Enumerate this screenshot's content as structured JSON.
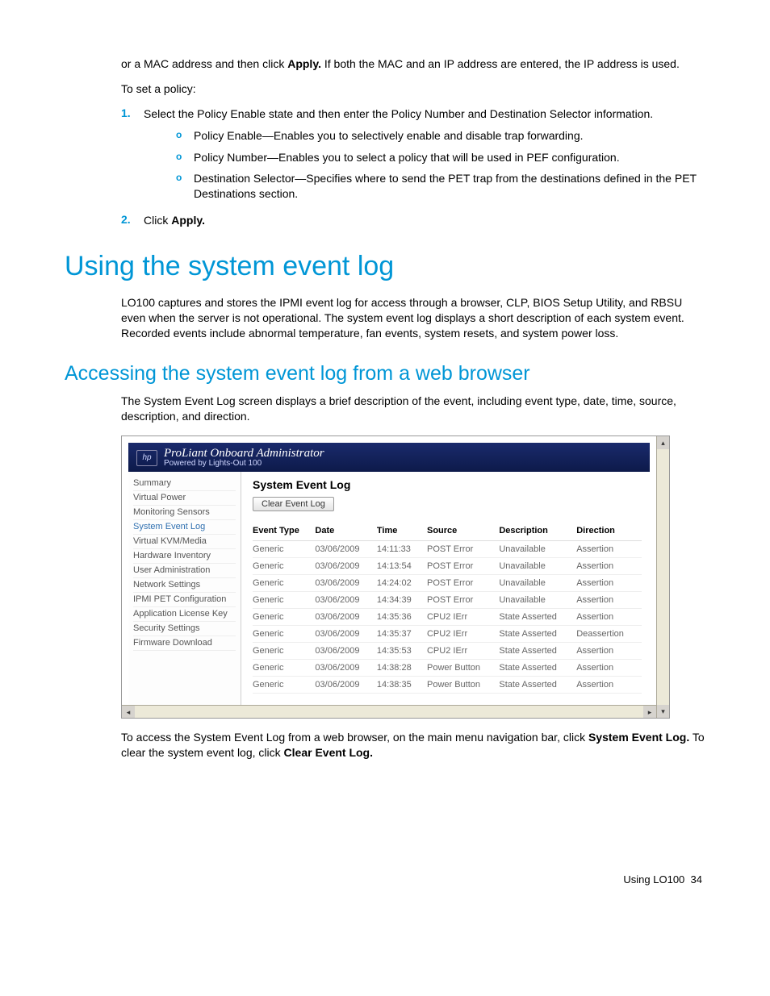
{
  "intro": {
    "p1a": "or a MAC address and then click ",
    "p1b": "Apply.",
    "p1c": " If both the MAC and an IP address are entered, the IP address is used.",
    "p2": "To set a policy:"
  },
  "ol": [
    {
      "num": "1.",
      "text": "Select the Policy Enable state and then enter the Policy Number and Destination Selector information.",
      "sub": [
        "Policy Enable—Enables you to selectively enable and disable trap forwarding.",
        "Policy Number—Enables you to select a policy that will be used in PEF configuration.",
        "Destination Selector—Specifies where to send the PET trap from the destinations defined in the PET Destinations section."
      ]
    },
    {
      "num": "2.",
      "text_a": "Click ",
      "text_b": "Apply."
    }
  ],
  "h1": "Using the system event log",
  "h1_para": "LO100 captures and stores the IPMI event log for access through a browser, CLP, BIOS Setup Utility, and RBSU even when the server is not operational. The system event log displays a short description of each system event. Recorded events include abnormal temperature, fan events, system resets, and system power loss.",
  "h2": "Accessing the system event log from a web browser",
  "h2_para": "The System Event Log screen displays a brief description of the event, including event type, date, time, source, description, and direction.",
  "after_shot": {
    "a": "To access the System Event Log from a web browser, on the main menu navigation bar, click ",
    "b": "System Event Log.",
    "c": " To clear the system event log, click ",
    "d": "Clear Event Log."
  },
  "footer": {
    "text": "Using LO100",
    "page": "34"
  },
  "screenshot": {
    "banner": {
      "logo": "hp",
      "title": "ProLiant Onboard Administrator",
      "subtitle": "Powered by Lights-Out 100"
    },
    "sidebar": [
      "Summary",
      "Virtual Power",
      "Monitoring Sensors",
      "System Event Log",
      "Virtual KVM/Media",
      "Hardware Inventory",
      "User Administration",
      "Network Settings",
      "IPMI PET Configuration",
      "Application License Key",
      "Security Settings",
      "Firmware Download"
    ],
    "sidebar_active_index": 3,
    "main_title": "System Event Log",
    "clear_btn": "Clear Event Log",
    "columns": [
      "Event Type",
      "Date",
      "Time",
      "Source",
      "Description",
      "Direction"
    ],
    "rows": [
      [
        "Generic",
        "03/06/2009",
        "14:11:33",
        "POST Error",
        "Unavailable",
        "Assertion"
      ],
      [
        "Generic",
        "03/06/2009",
        "14:13:54",
        "POST Error",
        "Unavailable",
        "Assertion"
      ],
      [
        "Generic",
        "03/06/2009",
        "14:24:02",
        "POST Error",
        "Unavailable",
        "Assertion"
      ],
      [
        "Generic",
        "03/06/2009",
        "14:34:39",
        "POST Error",
        "Unavailable",
        "Assertion"
      ],
      [
        "Generic",
        "03/06/2009",
        "14:35:36",
        "CPU2 IErr",
        "State Asserted",
        "Assertion"
      ],
      [
        "Generic",
        "03/06/2009",
        "14:35:37",
        "CPU2 IErr",
        "State Asserted",
        "Deassertion"
      ],
      [
        "Generic",
        "03/06/2009",
        "14:35:53",
        "CPU2 IErr",
        "State Asserted",
        "Assertion"
      ],
      [
        "Generic",
        "03/06/2009",
        "14:38:28",
        "Power Button",
        "State Asserted",
        "Assertion"
      ],
      [
        "Generic",
        "03/06/2009",
        "14:38:35",
        "Power Button",
        "State Asserted",
        "Assertion"
      ]
    ]
  }
}
